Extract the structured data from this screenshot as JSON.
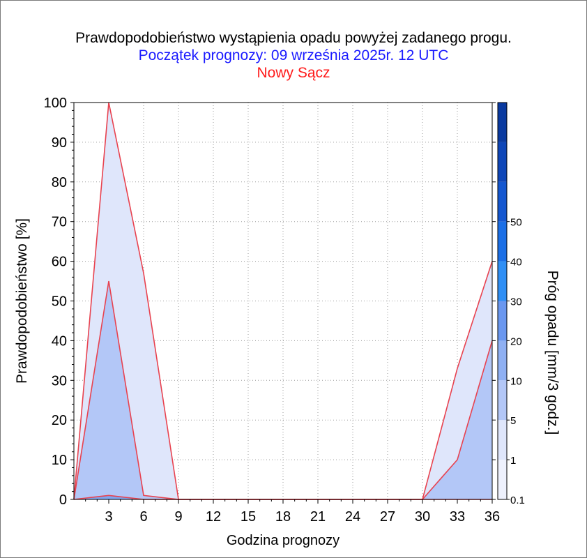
{
  "title": "Prawdopodobieństwo wystąpienia opadu powyżej zadanego progu.",
  "subtitle": "Początek prognozy: 09 września 2025r. 12 UTC",
  "location": "Nowy Sącz",
  "colors": {
    "title": "#000000",
    "subtitle": "#1a1aff",
    "location": "#ff1a1a",
    "series_line": "#e8424f",
    "fill_0_1": "#dfe6fb",
    "fill_1": "#b3c7f7",
    "fill_5": "#7fa6f0"
  },
  "chart_data": {
    "type": "area",
    "xlabel": "Godzina prognozy",
    "ylabel": "Prawdopodobieństwo [%]",
    "x": [
      0,
      3,
      6,
      9,
      12,
      15,
      18,
      21,
      24,
      27,
      30,
      33,
      36
    ],
    "x_ticks": [
      "3",
      "6",
      "9",
      "12",
      "15",
      "18",
      "21",
      "24",
      "27",
      "30",
      "33",
      "36"
    ],
    "xlim": [
      0,
      36
    ],
    "ylim": [
      0,
      100
    ],
    "y_ticks": [
      "0",
      "10",
      "20",
      "30",
      "40",
      "50",
      "60",
      "70",
      "80",
      "90",
      "100"
    ],
    "grid": true,
    "series": [
      {
        "threshold": "0.1",
        "values": [
          0,
          100,
          57,
          0,
          0,
          0,
          0,
          0,
          0,
          0,
          0,
          33,
          60
        ]
      },
      {
        "threshold": "1",
        "values": [
          0,
          55,
          1,
          0,
          0,
          0,
          0,
          0,
          0,
          0,
          0,
          10,
          40
        ]
      },
      {
        "threshold": "5",
        "values": [
          0,
          1,
          0,
          0,
          0,
          0,
          0,
          0,
          0,
          0,
          0,
          0,
          0
        ]
      }
    ],
    "colorbar": {
      "label": "Próg opadu [mm/3 godz.]",
      "tick_labels": [
        "0.1",
        "1",
        "5",
        "10",
        "20",
        "30",
        "40",
        "50"
      ],
      "colors": [
        "#eef1fd",
        "#dfe6fb",
        "#b3c7f7",
        "#8fb0f3",
        "#6a97ef",
        "#2f8ff5",
        "#1b6fe6",
        "#1457d0",
        "#0e46b8",
        "#0a3aa0"
      ]
    }
  }
}
